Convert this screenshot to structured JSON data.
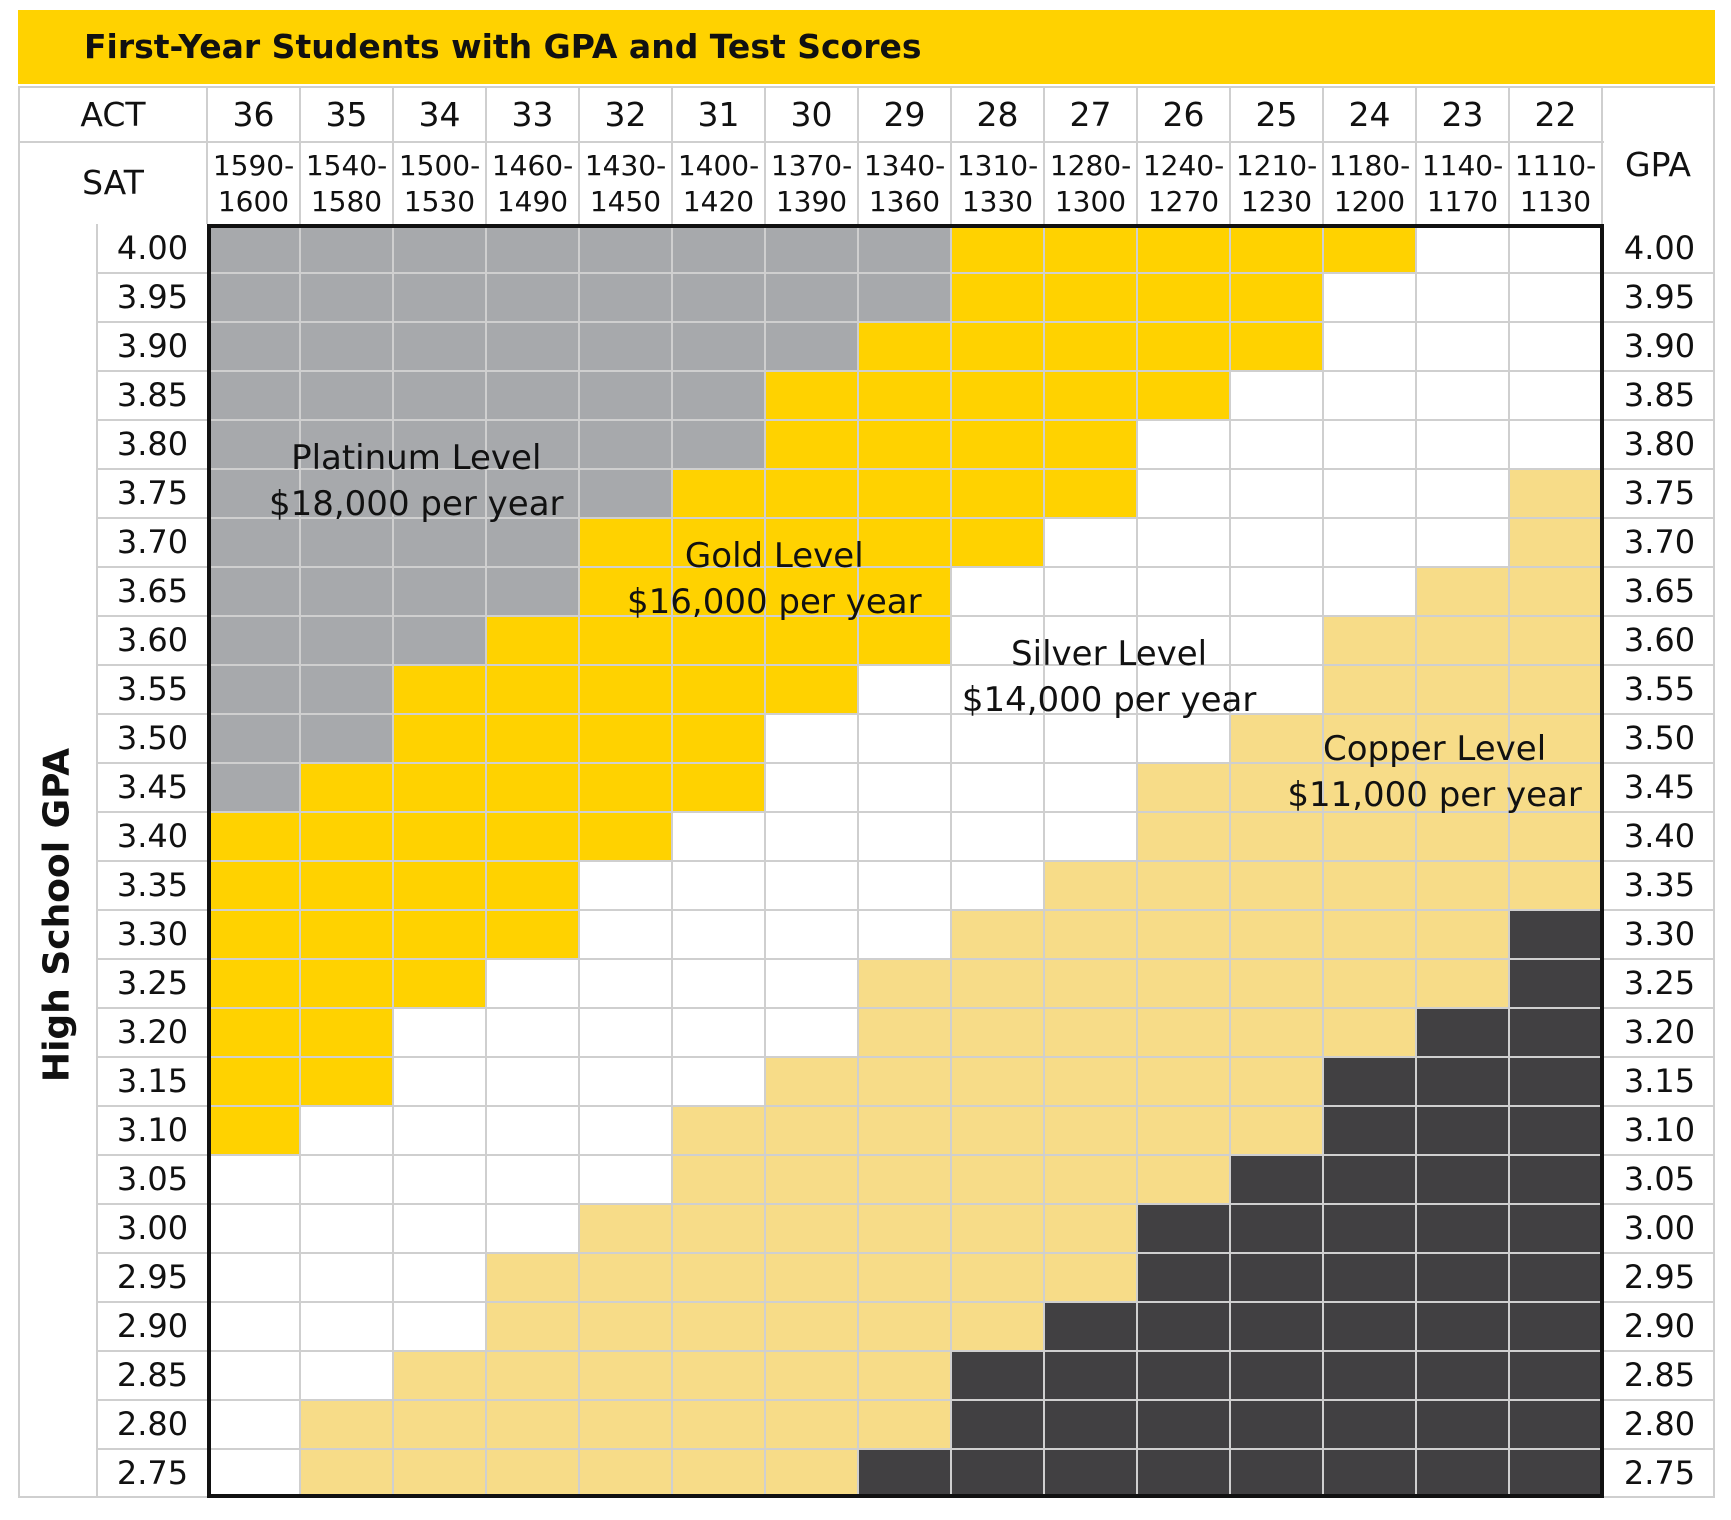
{
  "title": "First-Year Students with GPA and Test Scores",
  "headers": {
    "act": "ACT",
    "sat": "SAT",
    "gpa": "GPA",
    "side_axis": "High School GPA"
  },
  "colors": {
    "platinum": "#A7A9AC",
    "gold": "#FFD200",
    "silver": "#FFFFFF",
    "copper": "#F7DC88",
    "none": "#414042",
    "grid": "#CFCFCF",
    "title_bar": "#FFD200"
  },
  "chart_data": {
    "type": "heatmap",
    "title": "First-Year Students with GPA and Test Scores",
    "x_act": [
      "36",
      "35",
      "34",
      "33",
      "32",
      "31",
      "30",
      "29",
      "28",
      "27",
      "26",
      "25",
      "24",
      "23",
      "22"
    ],
    "x_sat_top": [
      "1590-",
      "1540-",
      "1500-",
      "1460-",
      "1430-",
      "1400-",
      "1370-",
      "1340-",
      "1310-",
      "1280-",
      "1240-",
      "1210-",
      "1180-",
      "1140-",
      "1110-"
    ],
    "x_sat_bottom": [
      "1600",
      "1580",
      "1530",
      "1490",
      "1450",
      "1420",
      "1390",
      "1360",
      "1330",
      "1300",
      "1270",
      "1230",
      "1200",
      "1170",
      "1130"
    ],
    "y_gpa": [
      "4.00",
      "3.95",
      "3.90",
      "3.85",
      "3.80",
      "3.75",
      "3.70",
      "3.65",
      "3.60",
      "3.55",
      "3.50",
      "3.45",
      "3.40",
      "3.35",
      "3.30",
      "3.25",
      "3.20",
      "3.15",
      "3.10",
      "3.05",
      "3.00",
      "2.95",
      "2.90",
      "2.85",
      "2.80",
      "2.75"
    ],
    "ylabel": "High School GPA",
    "levels": [
      {
        "key": "P",
        "name": "Platinum Level",
        "amount": "$18,000 per year"
      },
      {
        "key": "G",
        "name": "Gold Level",
        "amount": "$16,000 per year"
      },
      {
        "key": "S",
        "name": "Silver Level",
        "amount": "$14,000 per year"
      },
      {
        "key": "C",
        "name": "Copper Level",
        "amount": "$11,000 per year"
      }
    ],
    "grid": [
      "PPPPPPPPGGGGGSS",
      "PPPPPPPPGGGGSSS",
      "PPPPPPPGGGGGSSS",
      "PPPPPPGGGGGSSSS",
      "PPPPPPGGGGSSSSS",
      "PPPPPGGGGGSSSSC",
      "PPPPGGGGGSSSSSC",
      "PPPPGGGGSSSSSCC",
      "PPPGGGGGSSSSCCC",
      "PPGGGGGSSSSSCCC",
      "PPGGGGSSSSSCCCC",
      "PGGGGGSSSSCCCCC",
      "GGGGGSSSSSCCCCC",
      "GGGGSSSSSCCCCCC",
      "GGGGSSSSCCCCCCN",
      "GGGSSSSCCCCCCCN",
      "GGSSSSSCCCCCCNN",
      "GGSSSSCCCCCCNNN",
      "GSSSSCCCCCCCNNN",
      "SSSSSCCCCCCNNNN",
      "SSSSCCCCCCNNNNN",
      "SSSCCCCCCCNNNNN",
      "SSSCCCCCCNNNNNN",
      "SSCCCCCCNNNNNNN",
      "SCCCCCCCNNNNNNN",
      "SCCCCCCNNNNNNNN"
    ]
  }
}
